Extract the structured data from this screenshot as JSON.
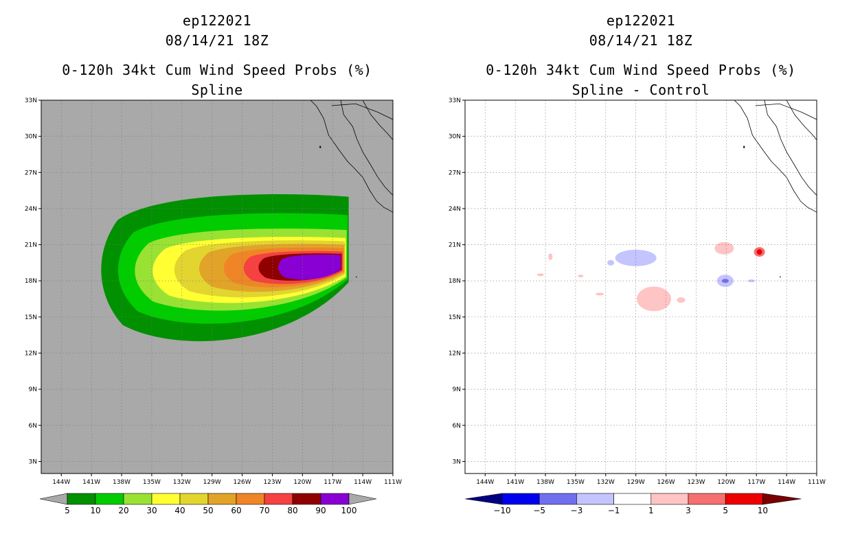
{
  "chart_data": [
    {
      "type": "heatmap",
      "panel": "left",
      "title_lines": [
        "ep122021",
        "08/14/21 18Z"
      ],
      "subtitle_lines": [
        "0-120h 34kt Cum Wind Speed Probs (%)",
        "Spline"
      ],
      "x_range_lon": [
        -146,
        -111
      ],
      "y_range_lat": [
        2,
        33
      ],
      "x_ticks": [
        "144W",
        "141W",
        "138W",
        "135W",
        "132W",
        "129W",
        "126W",
        "123W",
        "120W",
        "117W",
        "114W",
        "111W"
      ],
      "y_ticks": [
        "33N",
        "30N",
        "27N",
        "24N",
        "21N",
        "18N",
        "15N",
        "12N",
        "9N",
        "6N",
        "3N"
      ],
      "grid": true,
      "background_color": "#a9a9a9",
      "levels": [
        5,
        10,
        20,
        30,
        40,
        50,
        60,
        70,
        80,
        90,
        100
      ],
      "level_labels": [
        "5",
        "10",
        "20",
        "30",
        "40",
        "50",
        "60",
        "70",
        "80",
        "90",
        "100"
      ],
      "colors": [
        "#009000",
        "#00cc00",
        "#99e233",
        "#ffff33",
        "#e2d52f",
        "#e2a329",
        "#ef8526",
        "#f54141",
        "#8f0000",
        "#8800d4"
      ],
      "regions": [
        {
          "min_pct": 5,
          "lon_range": [
            -140.4,
            -115.4
          ],
          "lat_range": [
            12.4,
            25.3
          ]
        },
        {
          "min_pct": 10,
          "lon_range": [
            -138.7,
            -115.5
          ],
          "lat_range": [
            14.0,
            23.7
          ]
        },
        {
          "min_pct": 20,
          "lon_range": [
            -137.0,
            -115.6
          ],
          "lat_range": [
            15.2,
            22.4
          ]
        },
        {
          "min_pct": 30,
          "lon_range": [
            -135.2,
            -115.7
          ],
          "lat_range": [
            15.9,
            21.7
          ]
        },
        {
          "min_pct": 40,
          "lon_range": [
            -133.0,
            -115.8
          ],
          "lat_range": [
            16.4,
            21.4
          ]
        },
        {
          "min_pct": 50,
          "lon_range": [
            -130.5,
            -115.8
          ],
          "lat_range": [
            16.9,
            21.1
          ]
        },
        {
          "min_pct": 60,
          "lon_range": [
            -128.0,
            -115.9
          ],
          "lat_range": [
            17.3,
            20.8
          ]
        },
        {
          "min_pct": 70,
          "lon_range": [
            -126.0,
            -116.0
          ],
          "lat_range": [
            17.6,
            20.5
          ]
        },
        {
          "min_pct": 80,
          "lon_range": [
            -124.5,
            -116.1
          ],
          "lat_range": [
            17.9,
            20.3
          ]
        },
        {
          "min_pct": 90,
          "lon_range": [
            -122.5,
            -116.2
          ],
          "lat_range": [
            18.0,
            20.2
          ]
        }
      ]
    },
    {
      "type": "heatmap",
      "panel": "right",
      "title_lines": [
        "ep122021",
        "08/14/21 18Z"
      ],
      "subtitle_lines": [
        "0-120h 34kt Cum Wind Speed Probs (%)",
        "Spline - Control"
      ],
      "x_range_lon": [
        -146,
        -111
      ],
      "y_range_lat": [
        2,
        33
      ],
      "x_ticks": [
        "144W",
        "141W",
        "138W",
        "135W",
        "132W",
        "129W",
        "126W",
        "123W",
        "120W",
        "117W",
        "114W",
        "111W"
      ],
      "y_ticks": [
        "33N",
        "30N",
        "27N",
        "24N",
        "21N",
        "18N",
        "15N",
        "12N",
        "9N",
        "6N",
        "3N"
      ],
      "grid": true,
      "background_color": "#ffffff",
      "levels": [
        -10,
        -5,
        -3,
        -1,
        1,
        3,
        5,
        10
      ],
      "level_labels": [
        "-10",
        "-5",
        "-3",
        "-1",
        "1",
        "3",
        "5",
        "10"
      ],
      "colors": [
        "#000080",
        "#0000ee",
        "#7070ee",
        "#c4c4ff",
        "#ffffff",
        "#ffc4c4",
        "#f57070",
        "#ee0000",
        "#7a0000"
      ],
      "regions": [
        {
          "label": "negative",
          "center_lon": -129.0,
          "center_lat": 19.9,
          "value_range": [
            -3,
            -1
          ]
        },
        {
          "label": "positive",
          "center_lon": -127.2,
          "center_lat": 16.5,
          "value_range": [
            1,
            3
          ]
        },
        {
          "label": "positive",
          "center_lon": -120.2,
          "center_lat": 20.7,
          "value_range": [
            1,
            3
          ]
        },
        {
          "label": "positive-max",
          "center_lon": -116.7,
          "center_lat": 20.4,
          "value_range": [
            5,
            10
          ]
        },
        {
          "label": "negative-min",
          "center_lon": -120.1,
          "center_lat": 18.0,
          "value_range": [
            -5,
            -3
          ]
        }
      ]
    }
  ]
}
